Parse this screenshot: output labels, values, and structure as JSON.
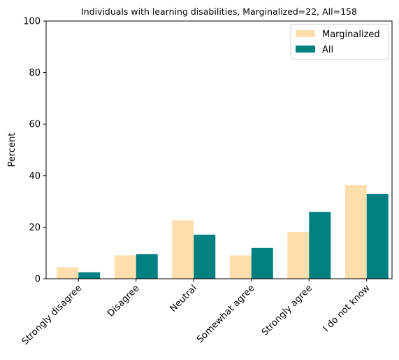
{
  "chart_data": {
    "type": "bar",
    "title": "Individuals with learning disabilities, Marginalized=22, All=158",
    "xlabel": "",
    "ylabel": "Percent",
    "ylim": [
      0,
      100
    ],
    "yticks": [
      0,
      20,
      40,
      60,
      80,
      100
    ],
    "categories": [
      "Strongly disagree",
      "Disagree",
      "Neutral",
      "Somewhat agree",
      "Strongly agree",
      "I do not know"
    ],
    "series": [
      {
        "name": "Marginalized",
        "color": "#ffdead",
        "values": [
          4.5,
          9.1,
          22.7,
          9.1,
          18.2,
          36.4
        ]
      },
      {
        "name": "All",
        "color": "#008080",
        "values": [
          2.5,
          9.5,
          17.1,
          12.0,
          25.9,
          32.9
        ]
      }
    ],
    "legend": {
      "position": "top-right"
    },
    "grid": false
  }
}
